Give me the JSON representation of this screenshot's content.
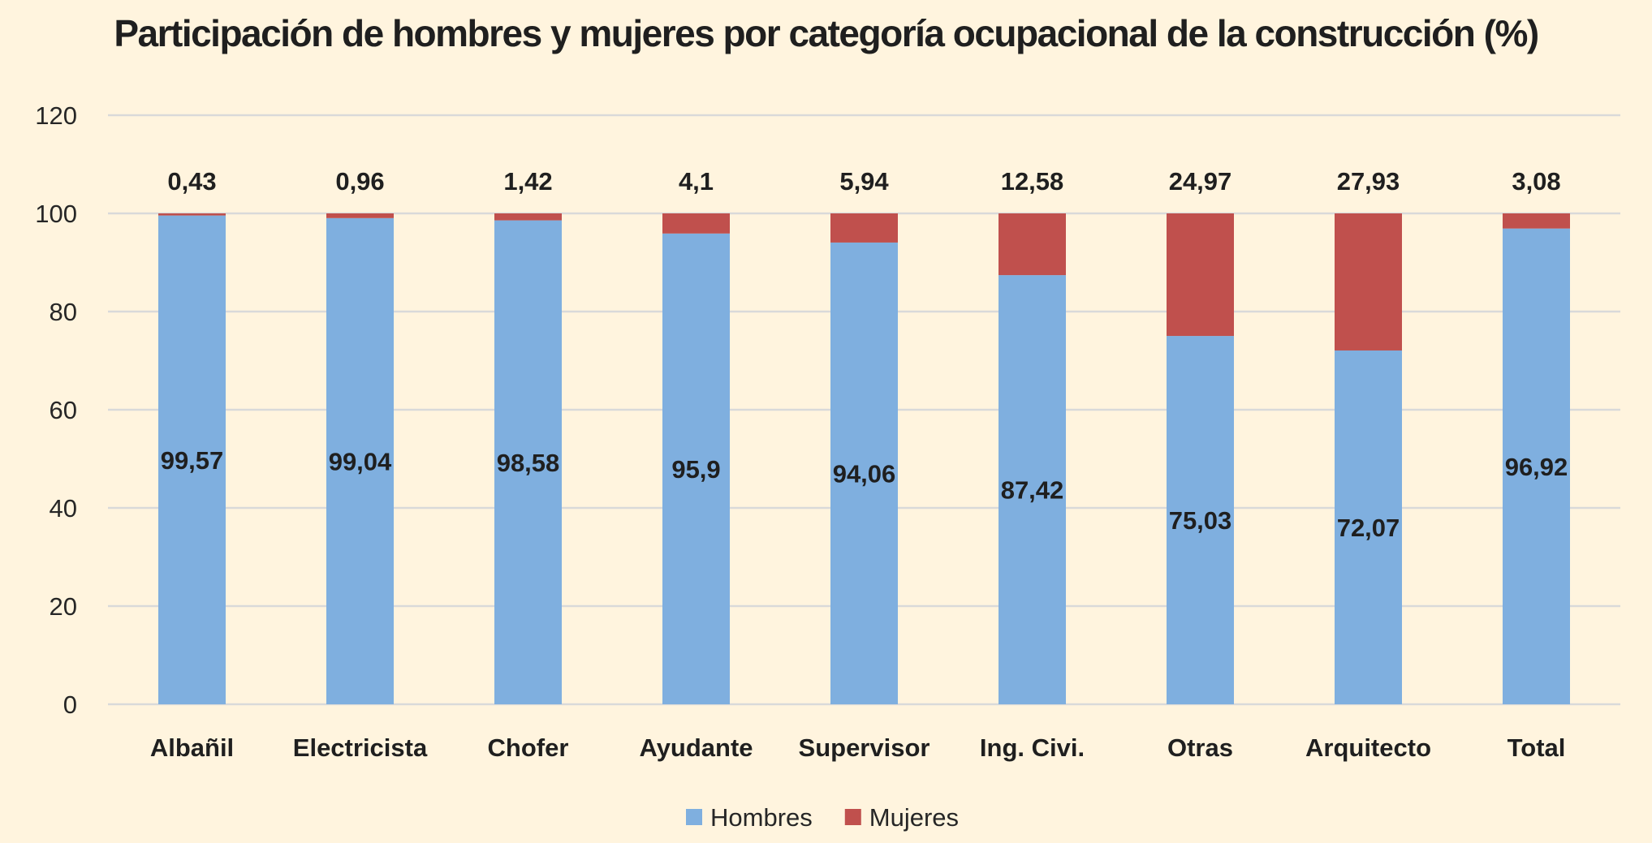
{
  "chart_data": {
    "type": "bar",
    "stacked": true,
    "title": "Participación de hombres y mujeres por categoría ocupacional de la construcción (%)",
    "xlabel": "",
    "ylabel": "",
    "ylim": [
      0,
      120
    ],
    "yticks": [
      0,
      20,
      40,
      60,
      80,
      100,
      120
    ],
    "grid": true,
    "legend_position": "bottom",
    "categories": [
      "Albañil",
      "Electricista",
      "Chofer",
      "Ayudante",
      "Supervisor",
      "Ing. Civi.",
      "Otras",
      "Arquitecto",
      "Total"
    ],
    "series": [
      {
        "name": "Hombres",
        "color": "#7fafdf",
        "values": [
          99.57,
          99.04,
          98.58,
          95.9,
          94.06,
          87.42,
          75.03,
          72.07,
          96.92
        ],
        "labels": [
          "99,57",
          "99,04",
          "98,58",
          "95,9",
          "94,06",
          "87,42",
          "75,03",
          "72,07",
          "96,92"
        ]
      },
      {
        "name": "Mujeres",
        "color": "#c0504d",
        "values": [
          0.43,
          0.96,
          1.42,
          4.1,
          5.94,
          12.58,
          24.97,
          27.93,
          3.08
        ],
        "labels": [
          "0,43",
          "0,96",
          "1,42",
          "4,1",
          "5,94",
          "12,58",
          "24,97",
          "27,93",
          "3,08"
        ]
      }
    ]
  }
}
